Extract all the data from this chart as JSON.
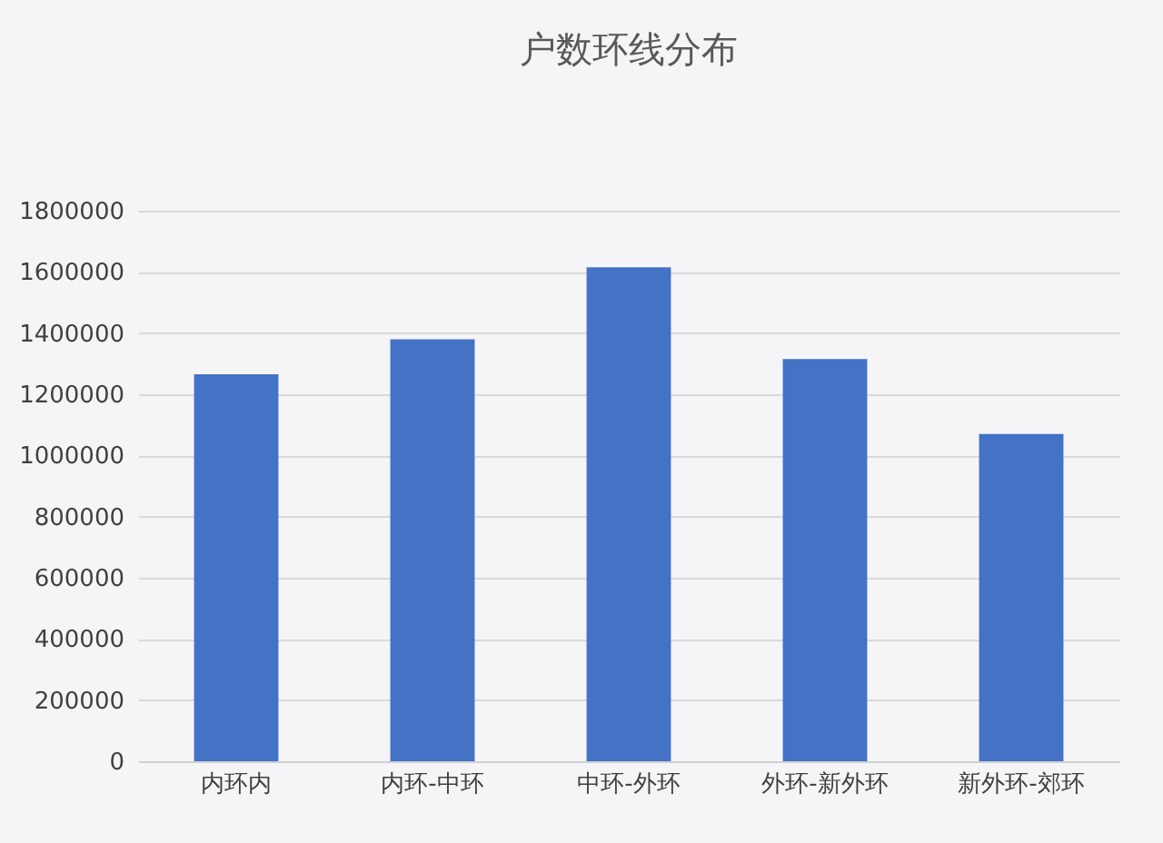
{
  "chart_data": {
    "type": "bar",
    "title": "户数环线分布",
    "categories": [
      "内环内",
      "内环-中环",
      "中环-外环",
      "外环-新外环",
      "新外环-郊环"
    ],
    "values": [
      1265000,
      1380000,
      1615000,
      1315000,
      1070000
    ],
    "color": "#4472c4",
    "ylim": [
      0,
      1800000
    ],
    "yticks": [
      0,
      200000,
      400000,
      600000,
      800000,
      1000000,
      1200000,
      1400000,
      1600000,
      1800000
    ],
    "grid": "y"
  }
}
